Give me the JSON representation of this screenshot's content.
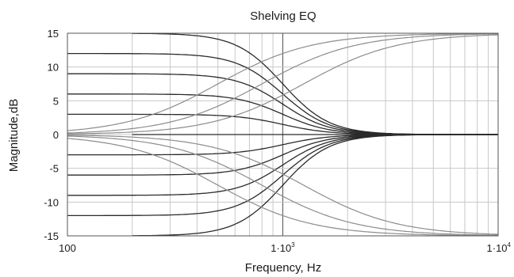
{
  "chart_data": {
    "type": "line",
    "title": "Shelving EQ",
    "xlabel": "Frequency, Hz",
    "ylabel": "Magnitude,dB",
    "xscale": "log",
    "xlim": [
      100,
      10000
    ],
    "ylim": [
      -15,
      15
    ],
    "grid": true,
    "legend": "none",
    "x_ticks": [
      {
        "base": "100",
        "exp": ""
      },
      {
        "base": "1·10",
        "exp": "3"
      },
      {
        "base": "1·10",
        "exp": "4"
      }
    ],
    "y_ticks": [
      "15",
      "10",
      "5",
      "0",
      "-5",
      "-10",
      "-15"
    ],
    "colors": {
      "curve_dark": "#2b2b2b",
      "curve_light": "#8c8c8c",
      "grid": "#c8c8c8",
      "frame": "#555555"
    },
    "series": [
      {
        "group": "low-shelf",
        "gain_db": 15,
        "fc_hz": 1000,
        "x_start_hz": 200,
        "x_end_hz": 10000
      },
      {
        "group": "low-shelf",
        "gain_db": 12,
        "fc_hz": 1000,
        "x_start_hz": 100,
        "x_end_hz": 10000
      },
      {
        "group": "low-shelf",
        "gain_db": 9,
        "fc_hz": 1000,
        "x_start_hz": 100,
        "x_end_hz": 10000
      },
      {
        "group": "low-shelf",
        "gain_db": 6,
        "fc_hz": 1000,
        "x_start_hz": 100,
        "x_end_hz": 10000
      },
      {
        "group": "low-shelf",
        "gain_db": 3,
        "fc_hz": 1000,
        "x_start_hz": 100,
        "x_end_hz": 10000
      },
      {
        "group": "low-shelf",
        "gain_db": 0,
        "fc_hz": 1000,
        "x_start_hz": 200,
        "x_end_hz": 10000
      },
      {
        "group": "low-shelf",
        "gain_db": -3,
        "fc_hz": 1000,
        "x_start_hz": 100,
        "x_end_hz": 10000
      },
      {
        "group": "low-shelf",
        "gain_db": -6,
        "fc_hz": 1000,
        "x_start_hz": 100,
        "x_end_hz": 10000
      },
      {
        "group": "low-shelf",
        "gain_db": -9,
        "fc_hz": 1000,
        "x_start_hz": 100,
        "x_end_hz": 10000
      },
      {
        "group": "low-shelf",
        "gain_db": -12,
        "fc_hz": 1000,
        "x_start_hz": 100,
        "x_end_hz": 10000
      },
      {
        "group": "low-shelf",
        "gain_db": -15,
        "fc_hz": 1000,
        "x_start_hz": 200,
        "x_end_hz": 10000
      },
      {
        "group": "high-shelf",
        "gain_db": 15,
        "fc_hz": 500,
        "x_start_hz": 100,
        "x_end_hz": 10000
      },
      {
        "group": "high-shelf",
        "gain_db": 15,
        "fc_hz": 800,
        "x_start_hz": 100,
        "x_end_hz": 10000
      },
      {
        "group": "high-shelf",
        "gain_db": 15,
        "fc_hz": 1250,
        "x_start_hz": 100,
        "x_end_hz": 10000
      },
      {
        "group": "high-shelf",
        "gain_db": -15,
        "fc_hz": 500,
        "x_start_hz": 100,
        "x_end_hz": 10000
      },
      {
        "group": "high-shelf",
        "gain_db": -15,
        "fc_hz": 800,
        "x_start_hz": 100,
        "x_end_hz": 10000
      },
      {
        "group": "high-shelf",
        "gain_db": -15,
        "fc_hz": 1250,
        "x_start_hz": 100,
        "x_end_hz": 10000
      }
    ]
  }
}
